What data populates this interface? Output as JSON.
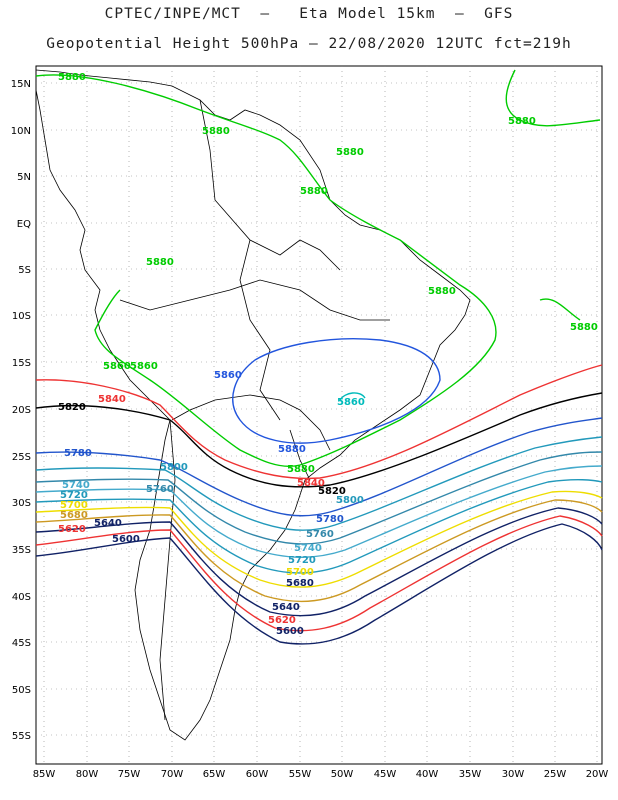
{
  "title_line1": "CPTEC/INPE/MCT  –   Eta Model 15km  –  GFS",
  "title_line2": "Geopotential Height 500hPa – 22/08/2020 12UTC fct=219h",
  "lat_labels": [
    "15N",
    "10N",
    "5N",
    "EQ",
    "5S",
    "10S",
    "15S",
    "20S",
    "25S",
    "30S",
    "35S",
    "40S",
    "45S",
    "50S",
    "55S"
  ],
  "lon_labels": [
    "85W",
    "80W",
    "75W",
    "70W",
    "65W",
    "60W",
    "55W",
    "50W",
    "45W",
    "40W",
    "35W",
    "30W",
    "25W",
    "20W"
  ],
  "colors": {
    "c5880": "#00cc00",
    "c5860": "#2255dd",
    "c5840_cyan": "#00bbbb",
    "c5820": "#000000",
    "c5840": "#ee3333",
    "c5780": "#2255cc",
    "c5760": "#2299bb",
    "c5740": "#3388aa",
    "c5720": "#44aacc",
    "c5700": "#eedd00",
    "c5680": "#cc9922",
    "c5660": "#112266",
    "land": "#000000",
    "grid": "#888888"
  },
  "contour_labels": {
    "l5880_a": "5880",
    "l5880_b": "5880",
    "l5880_c": "5880",
    "l5880_d": "5880",
    "l5880_e": "5880",
    "l5880_f": "5880",
    "l5880_g": "5880",
    "l5880_h": "5880",
    "l5880_i": "5860",
    "l5880_j": "5860",
    "l5880_k": "5880",
    "l5860_a": "5860",
    "l5860_b": "5880",
    "l5860_c": "5860",
    "l5820_a": "5820",
    "l5820_b": "5820",
    "l5840_a": "5840",
    "l5840_b": "5840",
    "l5780_a": "5780",
    "l5780_b": "5780",
    "l5800_a": "5800",
    "l5800_b": "5800",
    "l5760_a": "5760",
    "l5760_b": "5760",
    "l5740_a": "5740",
    "l5740_b": "5740",
    "l5720_a": "5720",
    "l5720_b": "5720",
    "l5700_a": "5700",
    "l5700_b": "5700",
    "l5680_a": "5680",
    "l5680_b": "5680",
    "l5660_a": "5640",
    "l5660_b": "5640",
    "l5620_a": "5620",
    "l5620_b": "5620",
    "l5600_a": "5600",
    "l5600_b": "5600"
  }
}
